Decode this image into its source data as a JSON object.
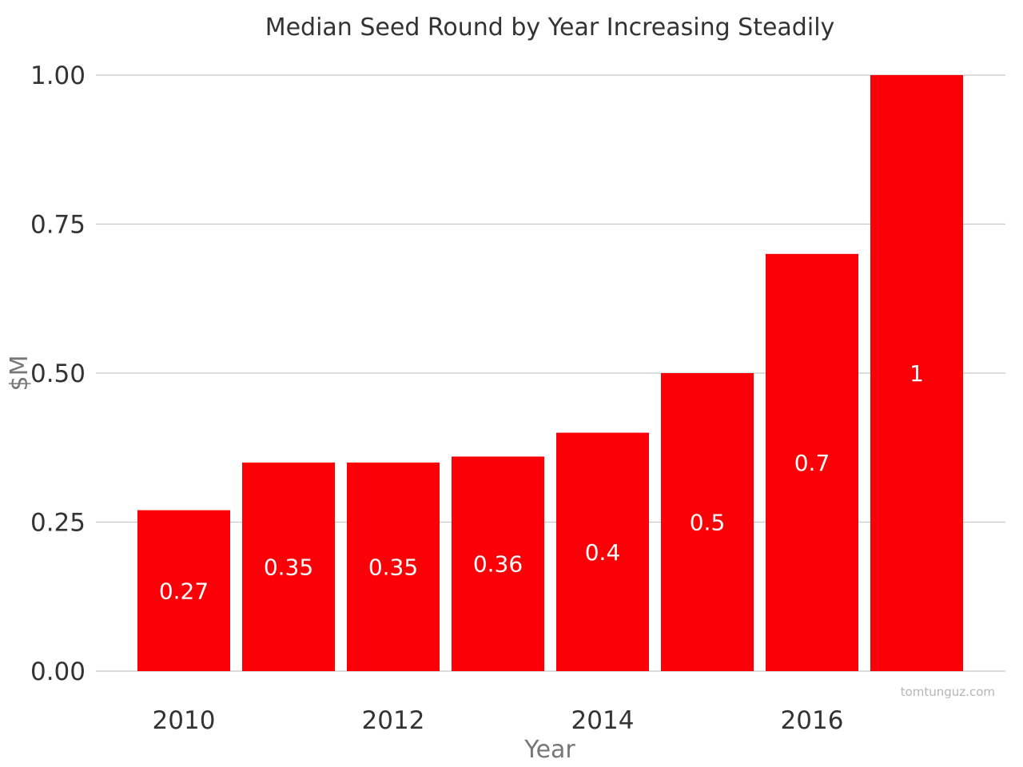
{
  "chart_data": {
    "type": "bar",
    "title": "Median Seed Round by Year Increasing Steadily",
    "xlabel": "Year",
    "ylabel": "$M",
    "categories": [
      "2010",
      "2011",
      "2012",
      "2013",
      "2014",
      "2015",
      "2016",
      "2017"
    ],
    "values": [
      0.27,
      0.35,
      0.35,
      0.36,
      0.4,
      0.5,
      0.7,
      1
    ],
    "data_labels": [
      "0.27",
      "0.35",
      "0.35",
      "0.36",
      "0.4",
      "0.5",
      "0.7",
      "1"
    ],
    "x_tick_labels": [
      "2010",
      "2012",
      "2014",
      "2016"
    ],
    "y_tick_labels": [
      "0.00",
      "0.25",
      "0.50",
      "0.75",
      "1.00"
    ],
    "y_ticks": [
      0,
      0.25,
      0.5,
      0.75,
      1
    ],
    "ylim": [
      0,
      1
    ],
    "grid": true,
    "legend": "none",
    "bar_color": "#fb0007",
    "watermark": "tomtunguz.com"
  }
}
